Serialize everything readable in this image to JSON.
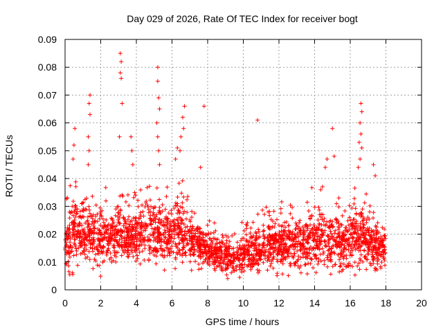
{
  "chart_data": {
    "type": "scatter",
    "title": "Day 029 of 2026, Rate Of TEC Index for receiver bogt",
    "xlabel": "GPS time / hours",
    "ylabel": "ROTI / TECUs",
    "xlim": [
      0,
      20
    ],
    "ylim": [
      0,
      0.09
    ],
    "x_ticks": [
      "0",
      "2",
      "4",
      "6",
      "8",
      "10",
      "12",
      "14",
      "16",
      "18",
      "20"
    ],
    "y_ticks": [
      "0",
      "0.01",
      "0.02",
      "0.03",
      "0.04",
      "0.05",
      "0.06",
      "0.07",
      "0.08",
      "0.09"
    ],
    "grid": true,
    "legend": "none",
    "marker": "+",
    "color": "#ff0000",
    "envelope": [
      {
        "x": 0.0,
        "lo": 0.005,
        "hi": 0.035
      },
      {
        "x": 0.5,
        "lo": 0.005,
        "hi": 0.045
      },
      {
        "x": 1.0,
        "lo": 0.005,
        "hi": 0.04
      },
      {
        "x": 1.5,
        "lo": 0.006,
        "hi": 0.038
      },
      {
        "x": 2.0,
        "lo": 0.004,
        "hi": 0.04
      },
      {
        "x": 2.5,
        "lo": 0.006,
        "hi": 0.036
      },
      {
        "x": 3.0,
        "lo": 0.007,
        "hi": 0.038
      },
      {
        "x": 3.5,
        "lo": 0.007,
        "hi": 0.035
      },
      {
        "x": 4.0,
        "lo": 0.007,
        "hi": 0.036
      },
      {
        "x": 4.5,
        "lo": 0.007,
        "hi": 0.04
      },
      {
        "x": 5.0,
        "lo": 0.007,
        "hi": 0.04
      },
      {
        "x": 5.5,
        "lo": 0.007,
        "hi": 0.035
      },
      {
        "x": 6.0,
        "lo": 0.007,
        "hi": 0.04
      },
      {
        "x": 6.5,
        "lo": 0.006,
        "hi": 0.042
      },
      {
        "x": 7.0,
        "lo": 0.006,
        "hi": 0.035
      },
      {
        "x": 7.5,
        "lo": 0.006,
        "hi": 0.03
      },
      {
        "x": 8.0,
        "lo": 0.005,
        "hi": 0.026
      },
      {
        "x": 8.5,
        "lo": 0.005,
        "hi": 0.024
      },
      {
        "x": 9.0,
        "lo": 0.004,
        "hi": 0.022
      },
      {
        "x": 9.5,
        "lo": 0.004,
        "hi": 0.022
      },
      {
        "x": 10.0,
        "lo": 0.004,
        "hi": 0.025
      },
      {
        "x": 10.5,
        "lo": 0.004,
        "hi": 0.028
      },
      {
        "x": 11.0,
        "lo": 0.004,
        "hi": 0.03
      },
      {
        "x": 11.5,
        "lo": 0.005,
        "hi": 0.032
      },
      {
        "x": 12.0,
        "lo": 0.005,
        "hi": 0.032
      },
      {
        "x": 12.5,
        "lo": 0.005,
        "hi": 0.033
      },
      {
        "x": 13.0,
        "lo": 0.005,
        "hi": 0.033
      },
      {
        "x": 13.5,
        "lo": 0.005,
        "hi": 0.035
      },
      {
        "x": 14.0,
        "lo": 0.005,
        "hi": 0.038
      },
      {
        "x": 14.5,
        "lo": 0.005,
        "hi": 0.038
      },
      {
        "x": 15.0,
        "lo": 0.005,
        "hi": 0.035
      },
      {
        "x": 15.5,
        "lo": 0.005,
        "hi": 0.033
      },
      {
        "x": 16.0,
        "lo": 0.005,
        "hi": 0.034
      },
      {
        "x": 16.5,
        "lo": 0.005,
        "hi": 0.04
      },
      {
        "x": 17.0,
        "lo": 0.005,
        "hi": 0.035
      },
      {
        "x": 17.5,
        "lo": 0.005,
        "hi": 0.03
      },
      {
        "x": 18.0,
        "lo": 0.006,
        "hi": 0.027
      }
    ],
    "peaks": [
      {
        "x": 0.55,
        "y": 0.058
      },
      {
        "x": 0.5,
        "y": 0.052
      },
      {
        "x": 0.45,
        "y": 0.047
      },
      {
        "x": 1.4,
        "y": 0.07
      },
      {
        "x": 1.35,
        "y": 0.067
      },
      {
        "x": 1.4,
        "y": 0.063
      },
      {
        "x": 1.3,
        "y": 0.055
      },
      {
        "x": 1.35,
        "y": 0.05
      },
      {
        "x": 1.3,
        "y": 0.045
      },
      {
        "x": 3.1,
        "y": 0.085
      },
      {
        "x": 3.15,
        "y": 0.082
      },
      {
        "x": 3.1,
        "y": 0.078
      },
      {
        "x": 3.15,
        "y": 0.076
      },
      {
        "x": 3.2,
        "y": 0.067
      },
      {
        "x": 3.05,
        "y": 0.055
      },
      {
        "x": 3.7,
        "y": 0.055
      },
      {
        "x": 3.75,
        "y": 0.05
      },
      {
        "x": 3.8,
        "y": 0.045
      },
      {
        "x": 5.2,
        "y": 0.08
      },
      {
        "x": 5.2,
        "y": 0.075
      },
      {
        "x": 5.25,
        "y": 0.069
      },
      {
        "x": 5.3,
        "y": 0.065
      },
      {
        "x": 5.15,
        "y": 0.06
      },
      {
        "x": 5.2,
        "y": 0.055
      },
      {
        "x": 5.25,
        "y": 0.05
      },
      {
        "x": 5.3,
        "y": 0.045
      },
      {
        "x": 6.7,
        "y": 0.066
      },
      {
        "x": 6.6,
        "y": 0.062
      },
      {
        "x": 6.65,
        "y": 0.058
      },
      {
        "x": 6.5,
        "y": 0.055
      },
      {
        "x": 6.45,
        "y": 0.05
      },
      {
        "x": 6.3,
        "y": 0.051
      },
      {
        "x": 6.2,
        "y": 0.047
      },
      {
        "x": 7.8,
        "y": 0.066
      },
      {
        "x": 7.6,
        "y": 0.044
      },
      {
        "x": 10.8,
        "y": 0.061
      },
      {
        "x": 15.0,
        "y": 0.058
      },
      {
        "x": 15.1,
        "y": 0.048
      },
      {
        "x": 14.7,
        "y": 0.047
      },
      {
        "x": 14.6,
        "y": 0.044
      },
      {
        "x": 16.6,
        "y": 0.067
      },
      {
        "x": 16.65,
        "y": 0.064
      },
      {
        "x": 16.55,
        "y": 0.06
      },
      {
        "x": 16.6,
        "y": 0.056
      },
      {
        "x": 16.5,
        "y": 0.053
      },
      {
        "x": 16.65,
        "y": 0.051
      },
      {
        "x": 16.55,
        "y": 0.047
      },
      {
        "x": 16.45,
        "y": 0.044
      },
      {
        "x": 17.3,
        "y": 0.045
      },
      {
        "x": 17.4,
        "y": 0.041
      }
    ]
  }
}
